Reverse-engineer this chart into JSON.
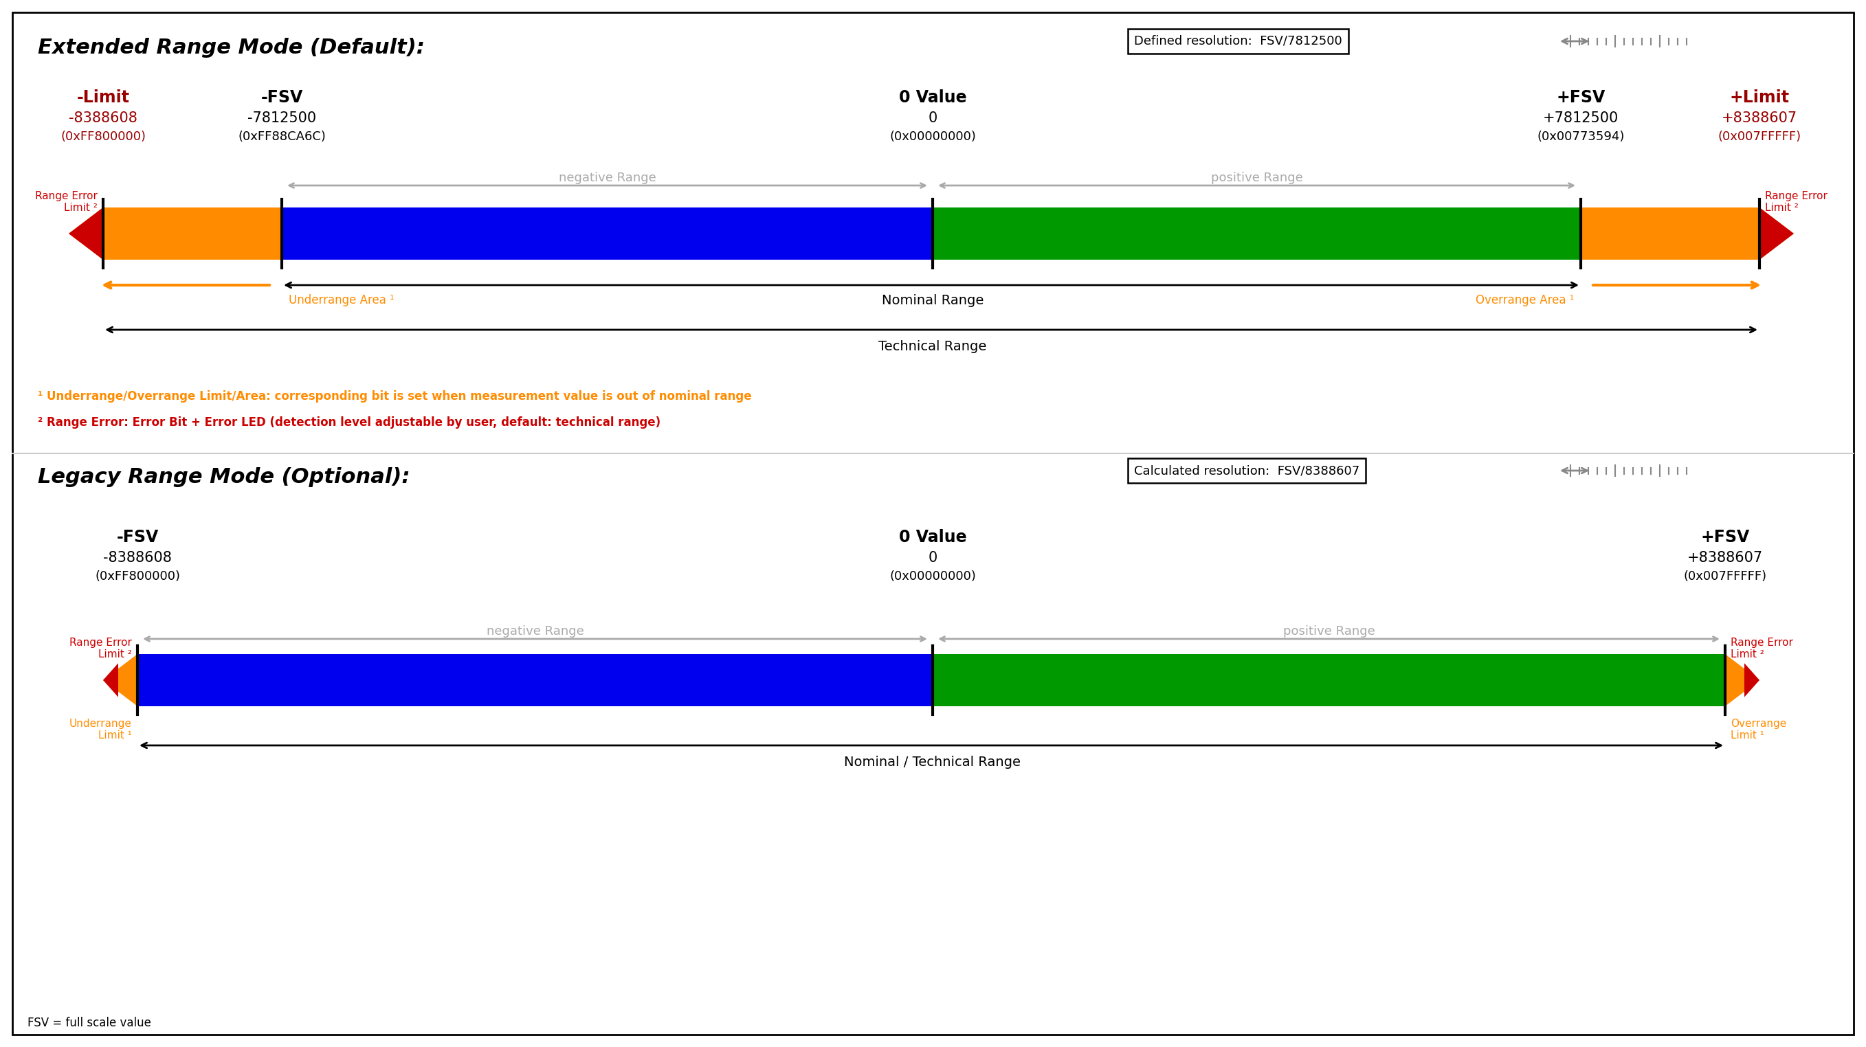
{
  "bg_color": "#ffffff",
  "title1": "Extended Range Mode (Default):",
  "title2": "Legacy Range Mode (Optional):",
  "res_label1": "Defined resolution:  FSV/7812500",
  "res_label2": "Calculated resolution:  FSV/8388607",
  "fsv_label": "FSV = full scale value",
  "footnote1": "¹ Underrange/Overrange Limit/Area: corresponding bit is set when measurement value is out of nominal range",
  "footnote2": "² Range Error: Error Bit + Error LED (detection level adjustable by user, default: technical range)",
  "orange": "#FF8C00",
  "blue": "#0000EE",
  "green": "#009900",
  "red": "#CC0000",
  "gray_text": "#aaaaaa",
  "black": "#000000",
  "ext": {
    "neg_limit_label": "-Limit",
    "neg_limit_val": "-8388608",
    "neg_limit_hex": "(0xFF800000)",
    "neg_fsv_label": "-FSV",
    "neg_fsv_val": "-7812500",
    "neg_fsv_hex": "(0xFF88CA6C)",
    "zero_label": "0 Value",
    "zero_val": "0",
    "zero_hex": "(0x00000000)",
    "pos_fsv_label": "+FSV",
    "pos_fsv_val": "+7812500",
    "pos_fsv_hex": "(0x00773594)",
    "pos_limit_label": "+Limit",
    "pos_limit_val": "+8388607",
    "pos_limit_hex": "(0x007FFFFF)",
    "neg_range_label": "negative Range",
    "pos_range_label": "positive Range",
    "underrange_label": "Underrange Area ¹",
    "overrange_label": "Overrange Area ¹",
    "nominal_label": "Nominal Range",
    "technical_label": "Technical Range"
  },
  "leg": {
    "neg_fsv_label": "-FSV",
    "neg_fsv_val": "-8388608",
    "neg_fsv_hex": "(0xFF800000)",
    "zero_label": "0 Value",
    "zero_val": "0",
    "zero_hex": "(0x00000000)",
    "pos_fsv_label": "+FSV",
    "pos_fsv_val": "+8388607",
    "pos_fsv_hex": "(0x007FFFFF)",
    "neg_range_label": "negative Range",
    "pos_range_label": "positive Range",
    "underrange_label": "Underrange\nLimit ¹",
    "overrange_label": "Overrange\nLimit ¹",
    "nom_tech_label": "Nominal / Technical Range"
  },
  "range_err_label_l": "Range Error\nLimit ²",
  "range_err_label_r": "Range Error\nLimit ²"
}
